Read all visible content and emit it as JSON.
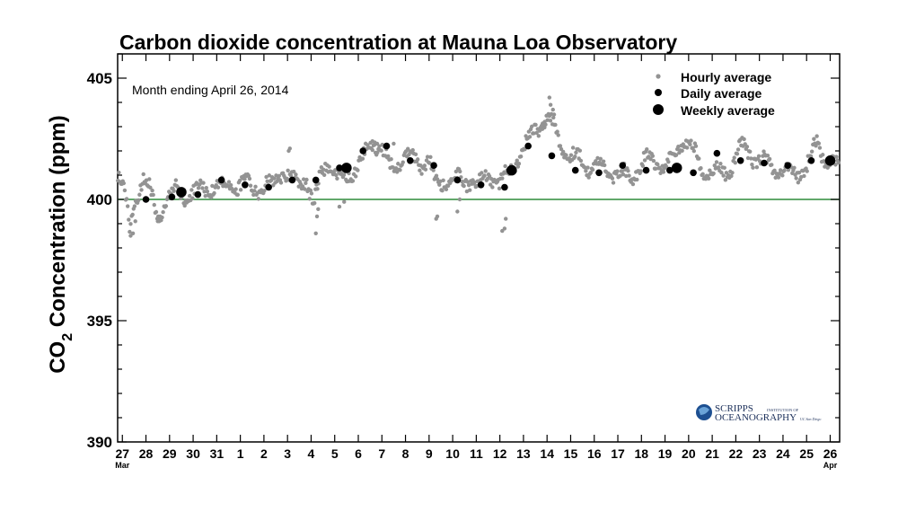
{
  "chart_data": {
    "type": "scatter",
    "title": "Carbon dioxide concentration at Mauna Loa Observatory",
    "subtitle": "Month ending April 26, 2014",
    "ylabel_main": "CO",
    "ylabel_sub": "2",
    "ylabel_rest": " Concentration (ppm)",
    "xlabel": "",
    "ylim": [
      390,
      406
    ],
    "xlim": [
      26.8,
      57.4
    ],
    "reference_line": 400,
    "reference_color": "#2e8b3a",
    "yticks": [
      390,
      395,
      400,
      405
    ],
    "xticks": [
      {
        "x": 27,
        "label": "27",
        "month": "Mar"
      },
      {
        "x": 28,
        "label": "28"
      },
      {
        "x": 29,
        "label": "29"
      },
      {
        "x": 30,
        "label": "30"
      },
      {
        "x": 31,
        "label": "31"
      },
      {
        "x": 32,
        "label": "1"
      },
      {
        "x": 33,
        "label": "2"
      },
      {
        "x": 34,
        "label": "3"
      },
      {
        "x": 35,
        "label": "4"
      },
      {
        "x": 36,
        "label": "5"
      },
      {
        "x": 37,
        "label": "6"
      },
      {
        "x": 38,
        "label": "7"
      },
      {
        "x": 39,
        "label": "8"
      },
      {
        "x": 40,
        "label": "9"
      },
      {
        "x": 41,
        "label": "10"
      },
      {
        "x": 42,
        "label": "11"
      },
      {
        "x": 43,
        "label": "12"
      },
      {
        "x": 44,
        "label": "13"
      },
      {
        "x": 45,
        "label": "14"
      },
      {
        "x": 46,
        "label": "15"
      },
      {
        "x": 47,
        "label": "16"
      },
      {
        "x": 48,
        "label": "17"
      },
      {
        "x": 49,
        "label": "18"
      },
      {
        "x": 50,
        "label": "19"
      },
      {
        "x": 51,
        "label": "20"
      },
      {
        "x": 52,
        "label": "21"
      },
      {
        "x": 53,
        "label": "22"
      },
      {
        "x": 54,
        "label": "23"
      },
      {
        "x": 55,
        "label": "24"
      },
      {
        "x": 56,
        "label": "25"
      },
      {
        "x": 57,
        "label": "26",
        "month": "Apr"
      }
    ],
    "legend": {
      "position": "top-right",
      "entries": [
        {
          "label": "Hourly average",
          "marker": "small-gray"
        },
        {
          "label": "Daily average",
          "marker": "medium-black"
        },
        {
          "label": "Weekly average",
          "marker": "large-black"
        }
      ]
    },
    "hourly_profile": [
      [
        26.8,
        401.3
      ],
      [
        27.0,
        400.7
      ],
      [
        27.2,
        399.6
      ],
      [
        27.3,
        398.6
      ],
      [
        27.5,
        399.8
      ],
      [
        27.7,
        400.4
      ],
      [
        27.9,
        401.0
      ],
      [
        28.1,
        400.6
      ],
      [
        28.3,
        399.8
      ],
      [
        28.5,
        399.2
      ],
      [
        28.7,
        399.7
      ],
      [
        29.0,
        400.2
      ],
      [
        29.3,
        400.3
      ],
      [
        29.6,
        400.1
      ],
      [
        30.0,
        400.3
      ],
      [
        30.5,
        400.4
      ],
      [
        31.0,
        400.7
      ],
      [
        31.3,
        400.4
      ],
      [
        31.6,
        400.6
      ],
      [
        32.0,
        400.6
      ],
      [
        32.5,
        400.5
      ],
      [
        33.0,
        400.5
      ],
      [
        33.4,
        400.6
      ],
      [
        33.8,
        401.2
      ],
      [
        34.2,
        400.8
      ],
      [
        34.5,
        400.6
      ],
      [
        34.8,
        401.0
      ],
      [
        35.1,
        399.6
      ],
      [
        35.4,
        401.0
      ],
      [
        35.7,
        401.6
      ],
      [
        36.0,
        401.0
      ],
      [
        36.3,
        400.6
      ],
      [
        36.6,
        401.1
      ],
      [
        37.0,
        401.4
      ],
      [
        37.3,
        401.8
      ],
      [
        37.6,
        402.3
      ],
      [
        38.0,
        402.1
      ],
      [
        38.3,
        401.3
      ],
      [
        38.6,
        401.4
      ],
      [
        39.0,
        401.8
      ],
      [
        39.3,
        401.6
      ],
      [
        39.6,
        401.5
      ],
      [
        40.0,
        401.7
      ],
      [
        40.3,
        400.5
      ],
      [
        40.6,
        400.7
      ],
      [
        41.0,
        401.0
      ],
      [
        41.4,
        400.6
      ],
      [
        41.8,
        400.8
      ],
      [
        42.2,
        400.6
      ],
      [
        42.6,
        401.0
      ],
      [
        43.0,
        400.7
      ],
      [
        43.4,
        401.1
      ],
      [
        43.8,
        401.8
      ],
      [
        44.2,
        402.4
      ],
      [
        44.6,
        403.0
      ],
      [
        45.0,
        403.4
      ],
      [
        45.3,
        402.8
      ],
      [
        45.6,
        402.3
      ],
      [
        46.0,
        401.8
      ],
      [
        46.4,
        401.6
      ],
      [
        46.8,
        401.4
      ],
      [
        47.2,
        401.3
      ],
      [
        47.6,
        401.2
      ],
      [
        48.0,
        401.1
      ],
      [
        48.4,
        400.9
      ],
      [
        48.8,
        401.2
      ],
      [
        49.2,
        401.7
      ],
      [
        49.6,
        401.6
      ],
      [
        50.0,
        401.4
      ],
      [
        50.4,
        401.8
      ],
      [
        50.8,
        402.5
      ],
      [
        51.2,
        402.0
      ],
      [
        51.6,
        401.2
      ],
      [
        52.0,
        401.1
      ],
      [
        52.4,
        401.0
      ],
      [
        52.8,
        401.3
      ],
      [
        53.2,
        402.2
      ],
      [
        53.6,
        401.9
      ],
      [
        54.0,
        401.6
      ],
      [
        54.4,
        401.4
      ],
      [
        54.8,
        401.3
      ],
      [
        55.2,
        401.2
      ],
      [
        55.6,
        401.1
      ],
      [
        56.0,
        401.3
      ],
      [
        56.4,
        402.3
      ],
      [
        56.8,
        401.8
      ],
      [
        57.2,
        401.3
      ],
      [
        57.4,
        401.3
      ]
    ],
    "hourly_amplitude": 0.45,
    "hourly_outliers": [
      [
        27.35,
        398.5
      ],
      [
        27.45,
        398.6
      ],
      [
        27.55,
        399.1
      ],
      [
        28.5,
        399.1
      ],
      [
        28.6,
        399.3
      ],
      [
        35.2,
        398.6
      ],
      [
        35.25,
        399.3
      ],
      [
        35.3,
        399.6
      ],
      [
        36.2,
        399.7
      ],
      [
        36.4,
        399.9
      ],
      [
        40.3,
        399.2
      ],
      [
        40.35,
        399.3
      ],
      [
        41.2,
        399.5
      ],
      [
        41.3,
        400.0
      ],
      [
        43.1,
        398.7
      ],
      [
        43.2,
        398.8
      ],
      [
        43.25,
        399.2
      ],
      [
        45.1,
        404.2
      ],
      [
        45.15,
        403.9
      ],
      [
        45.25,
        403.7
      ],
      [
        45.3,
        403.5
      ],
      [
        44.9,
        403.2
      ],
      [
        44.8,
        402.9
      ],
      [
        37.6,
        402.4
      ],
      [
        37.7,
        402.35
      ],
      [
        37.8,
        402.3
      ],
      [
        38.5,
        402.3
      ],
      [
        34.1,
        402.1
      ],
      [
        34.05,
        402.0
      ]
    ],
    "daily_average": [
      {
        "x": 28.0,
        "y": 400.0
      },
      {
        "x": 29.1,
        "y": 400.1
      },
      {
        "x": 30.2,
        "y": 400.2
      },
      {
        "x": 31.2,
        "y": 400.8
      },
      {
        "x": 32.2,
        "y": 400.6
      },
      {
        "x": 33.2,
        "y": 400.5
      },
      {
        "x": 34.2,
        "y": 400.8
      },
      {
        "x": 35.2,
        "y": 400.8
      },
      {
        "x": 36.2,
        "y": 401.3
      },
      {
        "x": 37.2,
        "y": 402.0
      },
      {
        "x": 38.2,
        "y": 402.2
      },
      {
        "x": 39.2,
        "y": 401.6
      },
      {
        "x": 40.2,
        "y": 401.4
      },
      {
        "x": 41.2,
        "y": 400.8
      },
      {
        "x": 42.2,
        "y": 400.6
      },
      {
        "x": 43.2,
        "y": 400.5
      },
      {
        "x": 44.2,
        "y": 402.2
      },
      {
        "x": 45.2,
        "y": 401.8
      },
      {
        "x": 46.2,
        "y": 401.2
      },
      {
        "x": 47.2,
        "y": 401.1
      },
      {
        "x": 48.2,
        "y": 401.4
      },
      {
        "x": 49.2,
        "y": 401.2
      },
      {
        "x": 50.2,
        "y": 401.2
      },
      {
        "x": 51.2,
        "y": 401.1
      },
      {
        "x": 52.2,
        "y": 401.9
      },
      {
        "x": 53.2,
        "y": 401.6
      },
      {
        "x": 54.2,
        "y": 401.5
      },
      {
        "x": 55.2,
        "y": 401.4
      },
      {
        "x": 56.2,
        "y": 401.6
      }
    ],
    "weekly_average": [
      {
        "x": 29.5,
        "y": 400.3
      },
      {
        "x": 36.5,
        "y": 401.3
      },
      {
        "x": 43.5,
        "y": 401.2
      },
      {
        "x": 50.5,
        "y": 401.3
      },
      {
        "x": 57.0,
        "y": 401.6
      }
    ]
  },
  "colors": {
    "hourly": "#939393",
    "daily": "#000000",
    "weekly": "#000000",
    "axis": "#000000"
  },
  "logo": {
    "name": "SCRIPPS",
    "tagline": "INSTITUTION OF",
    "second": "OCEANOGRAPHY",
    "sub": "UC San Diego"
  }
}
